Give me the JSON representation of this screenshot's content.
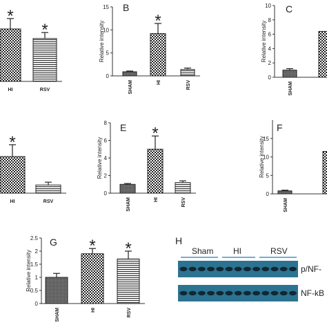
{
  "chart_data": [
    {
      "type": "bar",
      "categories": [
        "HI",
        "RSV"
      ],
      "values": [
        1.76,
        1.44
      ],
      "errors": [
        0.35,
        0.2
      ],
      "annotations": [
        "*",
        "*"
      ],
      "ylim": [
        0,
        2.5
      ]
    },
    {
      "type": "bar",
      "label": "B",
      "ylabel": "Relative intensity",
      "categories": [
        "SHAM",
        "HI",
        "RSV"
      ],
      "values": [
        0.9,
        9.2,
        1.4
      ],
      "errors": [
        0.15,
        2.2,
        0.3
      ],
      "annotations": [
        null,
        "*",
        null
      ],
      "ylim": [
        0,
        15
      ],
      "yticks": [
        0,
        5,
        10,
        15
      ]
    },
    {
      "type": "bar",
      "label": "C",
      "ylabel": "Relative intensity",
      "categories": [
        "SHAM",
        null
      ],
      "values": [
        1.0,
        6.4
      ],
      "errors": [
        0.2,
        null
      ],
      "ylim": [
        0,
        10
      ],
      "yticks": [
        0,
        2,
        4,
        6,
        8,
        10
      ]
    },
    {
      "type": "bar",
      "categories": [
        "HI",
        "RSV"
      ],
      "values": [
        1.3,
        0.29
      ],
      "errors": [
        0.42,
        0.1
      ],
      "annotations": [
        "*",
        null
      ],
      "ylim": [
        0,
        2.5
      ]
    },
    {
      "type": "bar",
      "label": "E",
      "ylabel": "Relative intensity",
      "categories": [
        "SHAM",
        "HI",
        "RSV"
      ],
      "values": [
        1.0,
        5.0,
        1.2
      ],
      "errors": [
        0.1,
        1.5,
        0.2
      ],
      "annotations": [
        null,
        "*",
        null
      ],
      "ylim": [
        0,
        8
      ],
      "yticks": [
        0,
        2,
        4,
        6,
        8
      ]
    },
    {
      "type": "bar",
      "label": "F",
      "ylabel": "Relative intensity",
      "categories": [
        "SHAM",
        null
      ],
      "values": [
        0.8,
        11.5
      ],
      "errors": [
        0.2,
        null
      ],
      "ylim": [
        0,
        20
      ],
      "yticks": [
        0,
        5,
        10,
        15
      ]
    },
    {
      "type": "bar",
      "label": "G",
      "ylabel": "Relative intensity",
      "categories": [
        "SHAM",
        "HI",
        "RSV"
      ],
      "values": [
        1.0,
        1.9,
        1.7
      ],
      "errors": [
        0.15,
        0.2,
        0.3
      ],
      "annotations": [
        null,
        "*",
        "*"
      ],
      "ylim": [
        0,
        2.5
      ],
      "yticks": [
        0,
        0.5,
        1,
        1.5,
        2,
        2.5
      ]
    }
  ],
  "blot": {
    "label": "H",
    "groups": [
      "Sham",
      "HI",
      "RSV"
    ],
    "rows": [
      "p/NF-",
      "NF-kB"
    ]
  }
}
